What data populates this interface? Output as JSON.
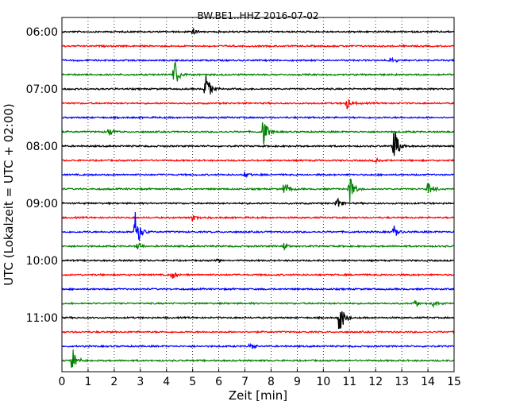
{
  "chart_data": {
    "type": "line",
    "title": "BW.BE1..HHZ 2016-07-02",
    "xlabel": "Zeit  [min]",
    "ylabel": "UTC (Lokalzeit = UTC + 02:00)",
    "xlim": [
      0,
      15
    ],
    "x_ticks": [
      "0",
      "1",
      "2",
      "3",
      "4",
      "5",
      "6",
      "7",
      "8",
      "9",
      "10",
      "11",
      "12",
      "13",
      "14",
      "15"
    ],
    "y_tick_labels": [
      "06:00",
      "07:00",
      "08:00",
      "09:00",
      "10:00",
      "11:00"
    ],
    "grid": "dotted",
    "color_cycle": [
      "#000000",
      "#ff0000",
      "#0000ff",
      "#008000"
    ],
    "traces": [
      {
        "start_utc": "06:00",
        "color": "#000000",
        "events": [
          {
            "t": 5.0,
            "amp": 0.3
          }
        ]
      },
      {
        "start_utc": "06:15",
        "color": "#ff0000",
        "events": []
      },
      {
        "start_utc": "06:30",
        "color": "#0000ff",
        "events": [
          {
            "t": 12.55,
            "amp": 0.35
          }
        ]
      },
      {
        "start_utc": "06:45",
        "color": "#008000",
        "events": [
          {
            "t": 4.3,
            "amp": 1.1
          }
        ]
      },
      {
        "start_utc": "07:00",
        "color": "#000000",
        "events": [
          {
            "t": 5.5,
            "amp": 1.0
          }
        ]
      },
      {
        "start_utc": "07:15",
        "color": "#ff0000",
        "events": [
          {
            "t": 10.9,
            "amp": 0.4
          }
        ]
      },
      {
        "start_utc": "07:30",
        "color": "#0000ff",
        "events": []
      },
      {
        "start_utc": "07:45",
        "color": "#008000",
        "events": [
          {
            "t": 1.8,
            "amp": 0.3
          },
          {
            "t": 7.7,
            "amp": 0.9
          }
        ]
      },
      {
        "start_utc": "08:00",
        "color": "#000000",
        "events": [
          {
            "t": 12.7,
            "amp": 1.2
          }
        ]
      },
      {
        "start_utc": "08:15",
        "color": "#ff0000",
        "events": [
          {
            "t": 12.0,
            "amp": 0.2
          }
        ]
      },
      {
        "start_utc": "08:30",
        "color": "#0000ff",
        "events": [
          {
            "t": 7.0,
            "amp": 0.25
          }
        ]
      },
      {
        "start_utc": "08:45",
        "color": "#008000",
        "events": [
          {
            "t": 8.5,
            "amp": 0.7
          },
          {
            "t": 11.0,
            "amp": 0.9
          },
          {
            "t": 14.0,
            "amp": 0.6
          }
        ]
      },
      {
        "start_utc": "09:00",
        "color": "#000000",
        "events": [
          {
            "t": 10.5,
            "amp": 0.5
          }
        ]
      },
      {
        "start_utc": "09:15",
        "color": "#ff0000",
        "events": [
          {
            "t": 5.0,
            "amp": 0.3
          }
        ]
      },
      {
        "start_utc": "09:30",
        "color": "#0000ff",
        "events": [
          {
            "t": 2.8,
            "amp": 1.6
          },
          {
            "t": 12.7,
            "amp": 0.5
          }
        ]
      },
      {
        "start_utc": "09:45",
        "color": "#008000",
        "events": [
          {
            "t": 2.9,
            "amp": 0.3
          },
          {
            "t": 8.5,
            "amp": 0.3
          }
        ]
      },
      {
        "start_utc": "10:00",
        "color": "#000000",
        "events": [
          {
            "t": 5.9,
            "amp": 0.2
          }
        ]
      },
      {
        "start_utc": "10:15",
        "color": "#ff0000",
        "events": [
          {
            "t": 4.2,
            "amp": 0.4
          }
        ]
      },
      {
        "start_utc": "10:30",
        "color": "#0000ff",
        "events": []
      },
      {
        "start_utc": "10:45",
        "color": "#008000",
        "events": [
          {
            "t": 13.5,
            "amp": 0.3
          },
          {
            "t": 14.2,
            "amp": 0.2
          }
        ]
      },
      {
        "start_utc": "11:00",
        "color": "#000000",
        "events": [
          {
            "t": 10.6,
            "amp": 1.3
          }
        ]
      },
      {
        "start_utc": "11:15",
        "color": "#ff0000",
        "events": []
      },
      {
        "start_utc": "11:30",
        "color": "#0000ff",
        "events": [
          {
            "t": 7.2,
            "amp": 0.25
          }
        ]
      },
      {
        "start_utc": "11:45",
        "color": "#008000",
        "events": [
          {
            "t": 0.4,
            "amp": 0.9
          }
        ]
      }
    ]
  }
}
